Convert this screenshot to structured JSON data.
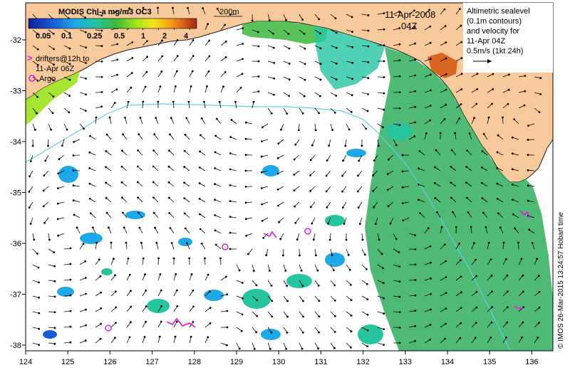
{
  "map": {
    "product_title": "MODIS Chl-a mg/m3 OC3",
    "date": "11-Apr-2008",
    "time": "04Z",
    "isobath_label": "200m",
    "colorbar": {
      "ticks": [
        "0.05",
        "0.1",
        "0.25",
        "0.5",
        "1",
        "2",
        "4"
      ],
      "colors": [
        "#0d1f9c",
        "#1a5ad6",
        "#1fa8e8",
        "#25c5a0",
        "#3cb73c",
        "#9be21b",
        "#f2e51a",
        "#f7a21a",
        "#d45a14",
        "#9b2a0a"
      ]
    },
    "legend": {
      "drifters_line1": "drifters@12h to",
      "drifters_line2": "11-Apr 06Z",
      "argo": "Argo"
    },
    "info_box": {
      "line1": "Altimetric sealevel",
      "line2": "(0.1m contours)",
      "line3": "and velocity for",
      "line4": "11-Apr 04Z",
      "scale_label": "0.5m/s (1kt 24h)"
    },
    "x_ticks": [
      "124",
      "125",
      "126",
      "127",
      "128",
      "129",
      "130",
      "131",
      "132",
      "133",
      "134",
      "135",
      "136"
    ],
    "y_ticks": [
      "-32",
      "-33",
      "-34",
      "-35",
      "-36",
      "-37",
      "-38"
    ],
    "copyright": "© IMOS 26-Mar-2015 13:24:57 Hobart time",
    "colors": {
      "land": "#f7c99b",
      "coast": "#1a1a1a",
      "isobath": "#5fd3e0",
      "drifter": "#e020e0",
      "argo": "#e020e0",
      "vector": "#000000"
    }
  }
}
